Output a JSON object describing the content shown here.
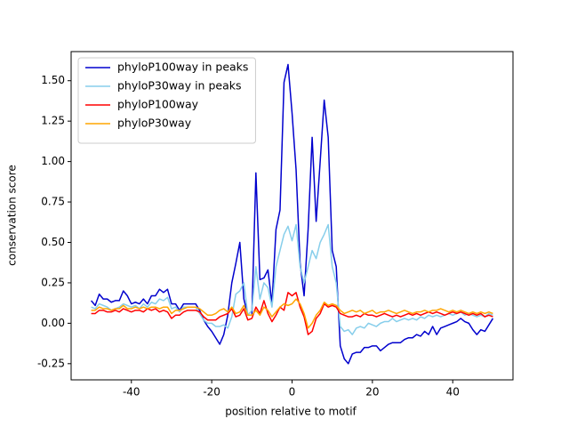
{
  "chart_data": {
    "type": "line",
    "xlabel": "position relative to motif",
    "ylabel": "conservation score",
    "x": [
      -50,
      -49,
      -48,
      -47,
      -46,
      -45,
      -44,
      -43,
      -42,
      -41,
      -40,
      -39,
      -38,
      -37,
      -36,
      -35,
      -34,
      -33,
      -32,
      -31,
      -30,
      -29,
      -28,
      -27,
      -26,
      -25,
      -24,
      -23,
      -22,
      -21,
      -20,
      -19,
      -18,
      -17,
      -16,
      -15,
      -14,
      -13,
      -12,
      -11,
      -10,
      -9,
      -8,
      -7,
      -6,
      -5,
      -4,
      -3,
      -2,
      -1,
      0,
      1,
      2,
      3,
      4,
      5,
      6,
      7,
      8,
      9,
      10,
      11,
      12,
      13,
      14,
      15,
      16,
      17,
      18,
      19,
      20,
      21,
      22,
      23,
      24,
      25,
      26,
      27,
      28,
      29,
      30,
      31,
      32,
      33,
      34,
      35,
      36,
      37,
      38,
      39,
      40,
      41,
      42,
      43,
      44,
      45,
      46,
      47,
      48,
      49,
      50
    ],
    "series": [
      {
        "name": "phyloP100way in peaks",
        "color": "#0000cd",
        "values": [
          0.14,
          0.11,
          0.18,
          0.15,
          0.15,
          0.13,
          0.14,
          0.14,
          0.2,
          0.17,
          0.12,
          0.13,
          0.12,
          0.15,
          0.12,
          0.17,
          0.17,
          0.21,
          0.19,
          0.21,
          0.12,
          0.12,
          0.08,
          0.12,
          0.12,
          0.12,
          0.12,
          0.08,
          0.02,
          -0.02,
          -0.05,
          -0.09,
          -0.13,
          -0.07,
          0.05,
          0.25,
          0.37,
          0.5,
          0.15,
          0.05,
          0.05,
          0.93,
          0.27,
          0.28,
          0.33,
          0.12,
          0.58,
          0.7,
          1.49,
          1.6,
          1.3,
          0.95,
          0.37,
          0.17,
          0.58,
          1.15,
          0.63,
          1.0,
          1.38,
          1.15,
          0.45,
          0.35,
          -0.14,
          -0.22,
          -0.25,
          -0.19,
          -0.18,
          -0.18,
          -0.15,
          -0.15,
          -0.14,
          -0.14,
          -0.17,
          -0.15,
          -0.13,
          -0.12,
          -0.12,
          -0.12,
          -0.1,
          -0.09,
          -0.09,
          -0.07,
          -0.08,
          -0.05,
          -0.07,
          -0.02,
          -0.07,
          -0.03,
          -0.02,
          -0.01,
          0.0,
          0.01,
          0.03,
          0.01,
          0.0,
          -0.04,
          -0.07,
          -0.04,
          -0.05,
          -0.01,
          0.03
        ]
      },
      {
        "name": "phyloP30way in peaks",
        "color": "#87ceeb",
        "values": [
          0.1,
          0.09,
          0.12,
          0.11,
          0.1,
          0.08,
          0.09,
          0.1,
          0.12,
          0.11,
          0.1,
          0.11,
          0.09,
          0.12,
          0.1,
          0.13,
          0.12,
          0.15,
          0.14,
          0.16,
          0.09,
          0.1,
          0.07,
          0.1,
          0.1,
          0.1,
          0.1,
          0.06,
          0.02,
          0.0,
          0.0,
          -0.02,
          -0.02,
          -0.01,
          -0.03,
          0.04,
          0.18,
          0.2,
          0.25,
          0.05,
          0.08,
          0.35,
          0.15,
          0.25,
          0.22,
          0.1,
          0.35,
          0.45,
          0.55,
          0.6,
          0.51,
          0.61,
          0.35,
          0.25,
          0.35,
          0.45,
          0.4,
          0.5,
          0.55,
          0.61,
          0.35,
          0.25,
          -0.02,
          -0.05,
          -0.04,
          -0.07,
          -0.03,
          -0.02,
          -0.03,
          0.0,
          -0.01,
          -0.02,
          0.0,
          0.01,
          0.01,
          0.03,
          0.01,
          0.02,
          0.03,
          0.02,
          0.03,
          0.02,
          0.04,
          0.03,
          0.05,
          0.04,
          0.05,
          0.04,
          0.05,
          0.06,
          0.05,
          0.06,
          0.07,
          0.05,
          0.06,
          0.05,
          0.04,
          0.05,
          0.04,
          0.06,
          0.05
        ]
      },
      {
        "name": "phyloP100way",
        "color": "#ff0000",
        "values": [
          0.06,
          0.06,
          0.08,
          0.08,
          0.07,
          0.07,
          0.08,
          0.07,
          0.09,
          0.08,
          0.07,
          0.08,
          0.08,
          0.07,
          0.09,
          0.08,
          0.09,
          0.07,
          0.08,
          0.07,
          0.03,
          0.05,
          0.05,
          0.07,
          0.08,
          0.08,
          0.08,
          0.07,
          0.04,
          0.02,
          0.02,
          0.02,
          0.04,
          0.05,
          0.06,
          0.09,
          0.04,
          0.05,
          0.09,
          0.02,
          0.03,
          0.1,
          0.06,
          0.14,
          0.06,
          0.01,
          0.05,
          0.1,
          0.08,
          0.19,
          0.17,
          0.19,
          0.1,
          0.04,
          -0.07,
          -0.05,
          0.03,
          0.06,
          0.12,
          0.1,
          0.11,
          0.1,
          0.06,
          0.05,
          0.04,
          0.04,
          0.05,
          0.04,
          0.06,
          0.05,
          0.05,
          0.04,
          0.05,
          0.06,
          0.05,
          0.04,
          0.05,
          0.04,
          0.05,
          0.06,
          0.05,
          0.06,
          0.05,
          0.06,
          0.07,
          0.06,
          0.07,
          0.06,
          0.05,
          0.06,
          0.07,
          0.06,
          0.07,
          0.06,
          0.05,
          0.06,
          0.05,
          0.06,
          0.04,
          0.05,
          0.04
        ]
      },
      {
        "name": "phyloP30way",
        "color": "#ffa500",
        "values": [
          0.08,
          0.08,
          0.1,
          0.09,
          0.09,
          0.08,
          0.09,
          0.09,
          0.11,
          0.09,
          0.09,
          0.1,
          0.09,
          0.1,
          0.09,
          0.1,
          0.1,
          0.09,
          0.1,
          0.1,
          0.06,
          0.08,
          0.08,
          0.09,
          0.1,
          0.1,
          0.1,
          0.09,
          0.07,
          0.05,
          0.05,
          0.06,
          0.08,
          0.09,
          0.07,
          0.1,
          0.06,
          0.07,
          0.11,
          0.05,
          0.05,
          0.08,
          0.05,
          0.1,
          0.08,
          0.04,
          0.07,
          0.1,
          0.12,
          0.11,
          0.12,
          0.15,
          0.12,
          0.06,
          -0.03,
          0.0,
          0.05,
          0.08,
          0.13,
          0.11,
          0.12,
          0.11,
          0.08,
          0.06,
          0.07,
          0.08,
          0.07,
          0.08,
          0.06,
          0.07,
          0.08,
          0.06,
          0.07,
          0.07,
          0.08,
          0.07,
          0.06,
          0.07,
          0.08,
          0.07,
          0.06,
          0.07,
          0.07,
          0.08,
          0.07,
          0.08,
          0.08,
          0.09,
          0.08,
          0.07,
          0.08,
          0.07,
          0.08,
          0.07,
          0.06,
          0.07,
          0.06,
          0.07,
          0.06,
          0.07,
          0.06
        ]
      }
    ],
    "xlim": [
      -55,
      55
    ],
    "ylim": [
      -0.35,
      1.68
    ],
    "xticks": [
      -40,
      -20,
      0,
      20,
      40
    ],
    "yticks": [
      -0.25,
      {
        "value": 0,
        "label": "0.00"
      },
      0.25,
      {
        "value": 0.5,
        "label": "0.50"
      },
      0.75,
      {
        "value": 1,
        "label": "1.00"
      },
      1.25,
      {
        "value": 1.5,
        "label": "1.50"
      }
    ],
    "grid": false,
    "legend": "upper left"
  }
}
